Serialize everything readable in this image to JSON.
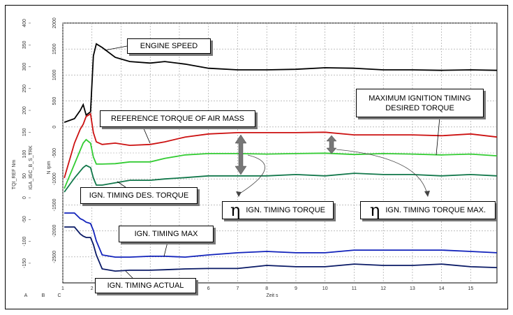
{
  "chart_data": {
    "type": "line",
    "xlabel": "Zeit s",
    "ylabel": "TQI_REF Nm",
    "y3label": "IGA_IGC_B_S_TRK",
    "y2label": "N rpm",
    "axis_ids": [
      "A",
      "B",
      "C"
    ],
    "xlim": [
      1,
      15.9
    ],
    "xticks": [
      1,
      2,
      3,
      4,
      5,
      6,
      7,
      8,
      9,
      10,
      11,
      12,
      13,
      14,
      15
    ],
    "ylim": [
      -195,
      400
    ],
    "yticks": [
      400,
      350,
      300,
      250,
      200,
      150,
      100,
      50,
      0,
      -50,
      -100,
      -150
    ],
    "y2lim": [
      -3000,
      2000
    ],
    "y2ticks": [
      2000,
      1500,
      1000,
      500,
      0,
      -500,
      -1000,
      -1500,
      -2000,
      -2500
    ],
    "grid": true,
    "x": [
      1.05,
      1.4,
      1.6,
      1.7,
      1.8,
      1.95,
      2.05,
      2.15,
      2.35,
      2.8,
      3.3,
      4.0,
      4.5,
      5.2,
      6,
      7,
      8,
      9,
      10,
      11,
      12,
      13,
      14,
      15,
      15.9
    ],
    "series": [
      {
        "name": "ENGINE SPEED",
        "color": "#000000",
        "axis": "y2",
        "values": [
          90,
          160,
          320,
          430,
          230,
          290,
          1370,
          1600,
          1530,
          1340,
          1260,
          1230,
          1260,
          1210,
          1130,
          1100,
          1100,
          1110,
          1140,
          1130,
          1100,
          1100,
          1090,
          1100,
          1090
        ]
      },
      {
        "name": "REFERENCE TORQUE OF AIR MASS",
        "color": "#cc1111",
        "values": [
          45,
          125,
          157,
          168,
          186,
          192,
          149,
          128,
          122,
          125,
          120,
          122,
          128,
          139,
          146,
          149,
          149,
          149,
          150,
          144,
          144,
          144,
          142,
          146,
          139
        ]
      },
      {
        "name": "MAXIMUM IGNITION TIMING DESIRED TORQUE",
        "color": "#33cc33",
        "values": [
          21,
          77,
          109,
          125,
          133,
          125,
          93,
          77,
          77,
          78,
          82,
          82,
          90,
          98,
          101,
          101,
          100,
          101,
          102,
          99,
          101,
          100,
          98,
          100,
          96
        ]
      },
      {
        "name": "IGN. TIMING DES. TORQUE",
        "color": "#11774a",
        "values": [
          13,
          45,
          61,
          69,
          74,
          69,
          45,
          29,
          29,
          34,
          40,
          40,
          43,
          46,
          50,
          50,
          50,
          53,
          50,
          56,
          53,
          53,
          50,
          53,
          50
        ]
      },
      {
        "name": "IGN. TIMING MAX",
        "color": "#1122bb",
        "values": [
          -35,
          -35,
          -48,
          -51,
          -56,
          -59,
          -75,
          -99,
          -131,
          -136,
          -136,
          -134,
          -134,
          -136,
          -131,
          -126,
          -123,
          -126,
          -126,
          -120,
          -120,
          -120,
          -120,
          -123,
          -126
        ]
      },
      {
        "name": "IGN. TIMING ACTUAL",
        "color": "#0a1a66",
        "values": [
          -67,
          -67,
          -83,
          -88,
          -91,
          -91,
          -107,
          -131,
          -163,
          -168,
          -166,
          -166,
          -165,
          -163,
          -162,
          -162,
          -155,
          -158,
          -158,
          -152,
          -155,
          -155,
          -152,
          -158,
          -160
        ]
      }
    ],
    "annotations": [
      {
        "symbol": "η",
        "text": "IGN. TIMING TORQUE"
      },
      {
        "symbol": "η",
        "text": "IGN. TIMING TORQUE MAX."
      }
    ]
  }
}
